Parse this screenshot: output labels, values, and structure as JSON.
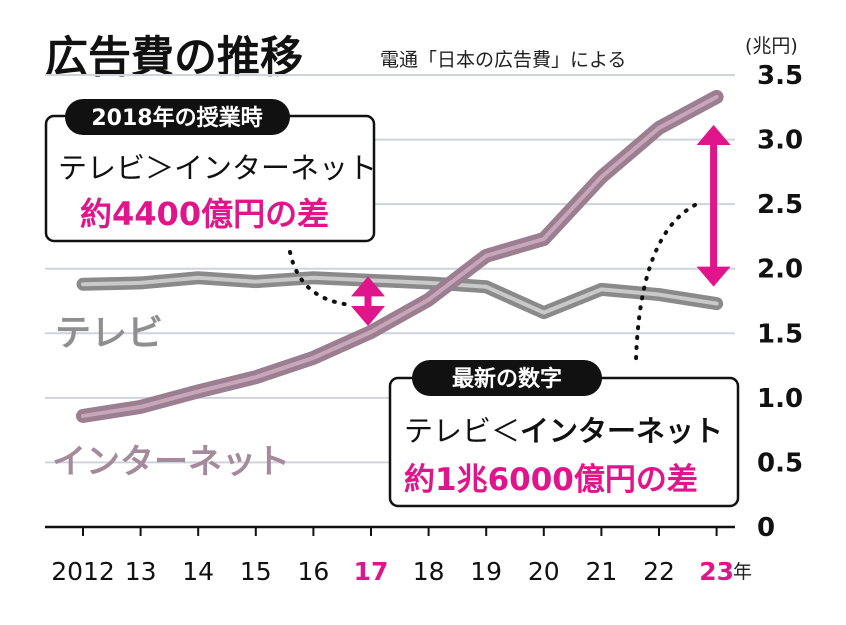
{
  "chart_data": {
    "type": "line",
    "title": "広告費の推移",
    "subtitle": "電通「日本の広告費」による",
    "ylabel": "(兆円)",
    "x_unit": "年",
    "categories": [
      "2012",
      "13",
      "14",
      "15",
      "16",
      "17",
      "18",
      "19",
      "20",
      "21",
      "22",
      "23"
    ],
    "highlight_categories": [
      "17",
      "23"
    ],
    "yticks": [
      "0",
      "0.5",
      "1.0",
      "1.5",
      "2.0",
      "2.5",
      "3.0",
      "3.5"
    ],
    "ylim": [
      0,
      3.5
    ],
    "grid": true,
    "series": [
      {
        "name": "テレビ",
        "values": [
          1.88,
          1.89,
          1.93,
          1.9,
          1.93,
          1.91,
          1.89,
          1.86,
          1.66,
          1.84,
          1.8,
          1.73
        ]
      },
      {
        "name": "インターネット",
        "values": [
          0.86,
          0.93,
          1.05,
          1.16,
          1.31,
          1.51,
          1.76,
          2.1,
          2.23,
          2.71,
          3.09,
          3.33
        ]
      }
    ],
    "annotations": [
      {
        "tag": "2018年の授業時",
        "line1": "テレビ＞インターネット",
        "line2_prefix": "約",
        "line2_value": "4400億円",
        "line2_suffix": "の差"
      },
      {
        "tag": "最新の数字",
        "line1_a": "テレビ＜",
        "line1_b": "インターネット",
        "line2_prefix": "約",
        "line2_value": "1兆6000億円",
        "line2_suffix": "の差"
      }
    ],
    "colors": {
      "tv": "#8a8a8a",
      "tv_core": "#c9c9c9",
      "internet": "#9b7f90",
      "internet_core": "#c7a6b9",
      "accent": "#e0158c",
      "grid": "#cfd3da"
    }
  }
}
